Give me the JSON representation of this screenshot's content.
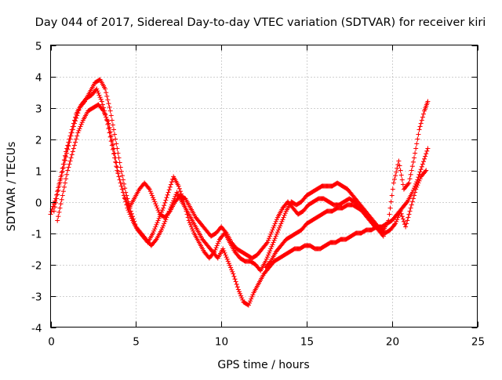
{
  "chart_data": {
    "type": "scatter",
    "title": "Day 044 of 2017, Sidereal Day-to-day VTEC variation (SDTVAR) for receiver kiri",
    "xlabel": "GPS time / hours",
    "ylabel": "SDTVAR / TECUs",
    "xlim": [
      0,
      25
    ],
    "ylim": [
      -4,
      5
    ],
    "x_ticks": [
      0,
      5,
      10,
      15,
      20,
      25
    ],
    "y_ticks": [
      -4,
      -3,
      -2,
      -1,
      0,
      1,
      2,
      3,
      4,
      5
    ],
    "x_tick_labels": [
      "0",
      "5",
      "10",
      "15",
      "20",
      "25"
    ],
    "y_tick_labels": [
      "-4",
      "-3",
      "-2",
      "-1",
      "0",
      "1",
      "2",
      "3",
      "4",
      "5"
    ],
    "grid": true,
    "legend": "none",
    "marker": "plus",
    "color": "#ff0000",
    "series": [
      {
        "x": [
          0.0,
          0.3,
          0.6,
          0.9,
          1.2,
          1.5,
          1.8,
          2.1,
          2.4,
          2.7,
          3.0,
          3.3,
          3.6,
          3.9,
          4.2,
          4.5,
          4.8,
          5.1,
          5.4,
          5.7,
          6.0,
          6.3,
          6.6,
          6.9,
          7.2,
          7.5,
          7.8,
          8.1,
          8.4,
          8.7,
          9.0,
          9.3,
          9.6,
          9.9,
          10.2,
          10.5,
          10.8,
          11.1,
          11.4,
          11.7,
          12.0,
          12.3,
          12.6,
          12.9,
          13.2,
          13.5,
          13.8,
          14.1,
          14.4,
          14.7,
          15.0,
          15.3,
          15.6,
          15.9,
          16.2,
          16.5,
          16.8,
          17.1,
          17.4,
          17.7,
          18.0,
          18.3,
          18.6,
          18.9,
          19.2,
          19.5,
          19.8,
          20.1,
          20.4,
          20.7,
          21.0,
          21.3,
          21.6,
          21.9,
          22.1
        ],
        "y": [
          -0.4,
          0.1,
          0.8,
          1.6,
          2.2,
          2.8,
          3.1,
          3.3,
          3.4,
          3.6,
          3.2,
          2.6,
          1.8,
          1.0,
          0.4,
          -0.2,
          -0.6,
          -0.9,
          -1.1,
          -1.3,
          -1.0,
          -0.6,
          -0.2,
          0.3,
          0.8,
          0.5,
          0.0,
          -0.6,
          -1.0,
          -1.3,
          -1.6,
          -1.8,
          -1.6,
          -1.2,
          -1.0,
          -1.3,
          -1.6,
          -1.8,
          -1.9,
          -1.9,
          -2.0,
          -2.2,
          -1.9,
          -1.5,
          -1.1,
          -0.7,
          -0.3,
          0.0,
          -0.1,
          0.0,
          0.2,
          0.3,
          0.4,
          0.5,
          0.5,
          0.5,
          0.6,
          0.5,
          0.4,
          0.2,
          0.0,
          -0.2,
          -0.4,
          -0.6,
          -0.8,
          -0.9,
          -0.6,
          0.6,
          1.3,
          0.4,
          0.6,
          1.4,
          2.3,
          2.9,
          3.2
        ]
      },
      {
        "x": [
          0.4,
          0.7,
          1.0,
          1.3,
          1.6,
          1.9,
          2.2,
          2.5,
          2.8,
          3.1,
          3.4,
          3.7,
          4.0,
          4.3,
          4.6,
          4.9,
          5.2,
          5.5,
          5.8,
          6.1,
          6.4,
          6.7,
          7.0,
          7.3,
          7.6,
          7.9,
          8.2,
          8.5,
          8.8,
          9.1,
          9.4,
          9.7,
          10.0,
          10.3,
          10.6,
          10.9,
          11.2,
          11.5,
          11.8,
          12.1,
          12.4,
          12.7,
          13.0,
          13.3,
          13.6,
          13.9,
          14.2,
          14.5,
          14.8,
          15.1,
          15.4,
          15.7,
          16.0,
          16.3,
          16.6,
          16.9,
          17.2,
          17.5,
          17.8,
          18.1,
          18.4,
          18.7,
          19.0,
          19.3,
          19.6,
          19.9,
          20.2,
          20.5,
          20.8,
          21.1,
          21.4,
          21.7,
          22.0
        ],
        "y": [
          -0.6,
          0.2,
          1.0,
          1.6,
          2.2,
          2.6,
          2.9,
          3.0,
          3.1,
          2.9,
          2.5,
          1.7,
          0.8,
          0.2,
          -0.2,
          0.1,
          0.4,
          0.6,
          0.4,
          0.0,
          -0.4,
          -0.5,
          -0.3,
          0.0,
          0.2,
          0.1,
          -0.2,
          -0.5,
          -0.7,
          -0.9,
          -1.1,
          -1.0,
          -0.8,
          -1.0,
          -1.3,
          -1.5,
          -1.6,
          -1.7,
          -1.8,
          -1.7,
          -1.5,
          -1.3,
          -0.9,
          -0.5,
          -0.2,
          0.0,
          -0.2,
          -0.4,
          -0.3,
          -0.1,
          0.0,
          0.1,
          0.1,
          0.0,
          -0.1,
          -0.1,
          0.0,
          0.1,
          0.0,
          -0.2,
          -0.4,
          -0.6,
          -0.8,
          -0.9,
          -1.0,
          -0.9,
          -0.7,
          -0.3,
          -0.8,
          -0.2,
          0.4,
          0.8,
          1.0
        ]
      },
      {
        "x": [
          0.2,
          0.5,
          0.8,
          1.1,
          1.4,
          1.7,
          2.0,
          2.3,
          2.6,
          2.9,
          3.2,
          3.5,
          3.8,
          4.1,
          4.4,
          4.7,
          5.0,
          5.3,
          5.6,
          5.9,
          6.2,
          6.5,
          6.8,
          7.1,
          7.4,
          7.7,
          8.0,
          8.3,
          8.6,
          8.9,
          9.2,
          9.5,
          9.8,
          10.1,
          10.4,
          10.7,
          11.0,
          11.3,
          11.6,
          11.9,
          12.2,
          12.5,
          12.8,
          13.1,
          13.4,
          13.7,
          14.0,
          14.3,
          14.6,
          14.9,
          15.2,
          15.5,
          15.8,
          16.1,
          16.4,
          16.7,
          17.0,
          17.3,
          17.6,
          17.9,
          18.2,
          18.5,
          18.8,
          19.1,
          19.4,
          19.7,
          20.0,
          20.3,
          20.6,
          20.9,
          21.2,
          21.5,
          21.8,
          22.1
        ],
        "y": [
          -0.3,
          0.5,
          1.2,
          1.9,
          2.5,
          3.0,
          3.2,
          3.5,
          3.8,
          3.9,
          3.6,
          2.9,
          2.0,
          1.1,
          0.3,
          -0.3,
          -0.8,
          -1.0,
          -1.2,
          -1.4,
          -1.2,
          -0.9,
          -0.5,
          -0.1,
          0.3,
          0.0,
          -0.3,
          -0.6,
          -0.9,
          -1.2,
          -1.4,
          -1.6,
          -1.8,
          -1.5,
          -1.9,
          -2.3,
          -2.8,
          -3.2,
          -3.3,
          -2.9,
          -2.6,
          -2.3,
          -2.1,
          -1.9,
          -1.8,
          -1.7,
          -1.6,
          -1.5,
          -1.5,
          -1.4,
          -1.4,
          -1.5,
          -1.5,
          -1.4,
          -1.3,
          -1.3,
          -1.2,
          -1.2,
          -1.1,
          -1.0,
          -1.0,
          -0.9,
          -0.9,
          -0.8,
          -0.8,
          -0.7,
          -0.6,
          -0.4,
          -0.2,
          0.0,
          0.3,
          0.7,
          1.2,
          1.7
        ]
      },
      {
        "x": [
          12.6,
          12.9,
          13.2,
          13.5,
          13.8,
          14.1,
          14.4,
          14.7,
          15.0,
          15.3,
          15.6,
          15.9,
          16.2,
          16.5,
          16.8,
          17.1,
          17.4,
          17.7,
          18.0,
          18.3,
          18.6,
          18.9,
          19.2,
          19.5
        ],
        "y": [
          -2.1,
          -1.9,
          -1.6,
          -1.4,
          -1.2,
          -1.1,
          -1.0,
          -0.9,
          -0.7,
          -0.6,
          -0.5,
          -0.4,
          -0.3,
          -0.3,
          -0.2,
          -0.2,
          -0.1,
          -0.1,
          -0.2,
          -0.3,
          -0.5,
          -0.7,
          -0.9,
          -1.1
        ]
      }
    ]
  }
}
